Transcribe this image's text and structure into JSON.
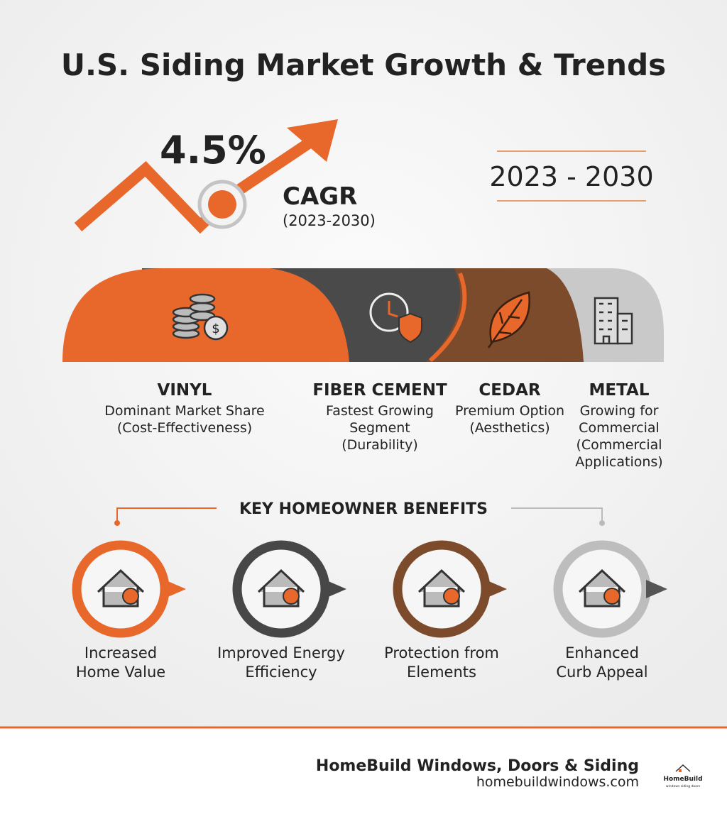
{
  "header": {
    "title": "U.S. Siding Market Growth & Trends"
  },
  "growth": {
    "rate": "4.5%",
    "label": "CAGR",
    "period": "(2023-2030)",
    "range": "2023 - 2030"
  },
  "segments": [
    {
      "name": "VINYL",
      "description": [
        "Dominant Market Share",
        "(Cost-Effectiveness)"
      ]
    },
    {
      "name": "FIBER CEMENT",
      "description": [
        "Fastest Growing",
        "Segment",
        "(Durability)"
      ]
    },
    {
      "name": "CEDAR",
      "description": [
        "Premium Option",
        "(Aesthetics)"
      ]
    },
    {
      "name": "METAL",
      "description": [
        "Growing for",
        "Commercial",
        "(Commercial",
        "Applications)"
      ]
    }
  ],
  "benefits": {
    "title": "KEY HOMEOWNER BENEFITS",
    "items": [
      [
        "Increased",
        "Home Value"
      ],
      [
        "Improved Energy",
        "Efficiency"
      ],
      [
        "Protection from",
        "Elements"
      ],
      [
        "Enhanced",
        "Curb Appeal"
      ]
    ]
  },
  "footer": {
    "company": "HomeBuild Windows, Doors & Siding",
    "url": "homebuildwindows.com",
    "logo": "HomeBuild",
    "logo_tagline": "windows siding doors"
  }
}
